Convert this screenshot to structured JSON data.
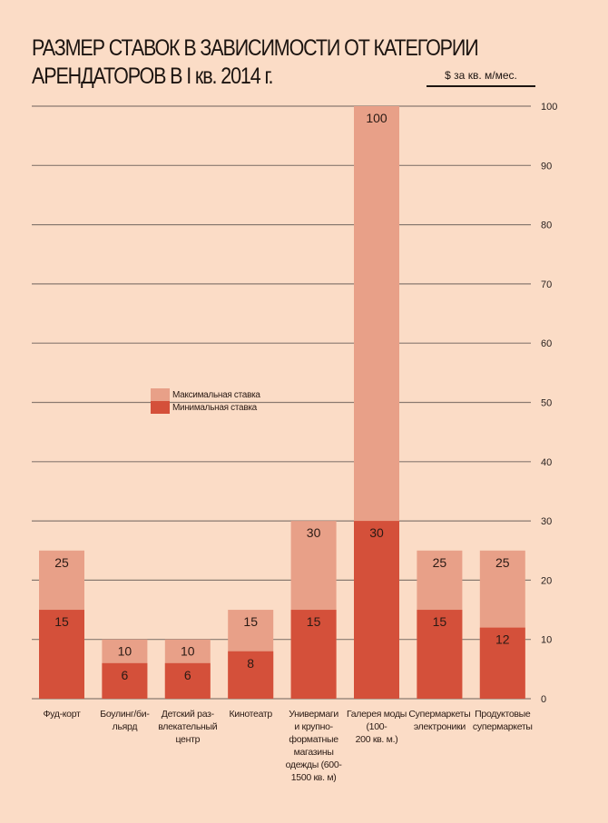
{
  "title_line1": "РАЗМЕР СТАВОК В ЗАВИСИМОСТИ ОТ КАТЕГОРИИ",
  "title_line2": "АРЕНДАТОРОВ В I кв. 2014 г.",
  "unit_label": "$ за кв. м/мес.",
  "colors": {
    "background": "#fbdcc6",
    "max_rate": "#e8a088",
    "min_rate": "#d4503a",
    "grid": "#8a7a70"
  },
  "chart_data": {
    "type": "bar",
    "stacked": "overlay",
    "title": "РАЗМЕР СТАВОК В ЗАВИСИМОСТИ ОТ КАТЕГОРИИ АРЕНДАТОРОВ В I кв. 2014 г.",
    "ylabel": "$ за кв. м/мес.",
    "xlabel": "",
    "ylim": [
      0,
      100
    ],
    "yticks": [
      0,
      10,
      20,
      30,
      40,
      50,
      60,
      70,
      80,
      90,
      100
    ],
    "y_axis_position": "right",
    "grid": true,
    "legend_position": "center-left",
    "categories": [
      [
        "Фуд-корт"
      ],
      [
        "Боулинг/би-",
        "льярд"
      ],
      [
        "Детский раз-",
        "влекательный",
        "центр"
      ],
      [
        "Кинотеатр"
      ],
      [
        "Универмаги",
        "и крупно-",
        "форматные",
        "магазины",
        "одежды (600-",
        "1500 кв. м)"
      ],
      [
        "Галерея моды",
        "(100-",
        "200 кв. м.)"
      ],
      [
        "Супермаркеты",
        "электроники"
      ],
      [
        "Продуктовые",
        "супермаркеты"
      ]
    ],
    "series": [
      {
        "name": "Максимальная ставка",
        "values": [
          25,
          10,
          10,
          15,
          30,
          100,
          25,
          25
        ]
      },
      {
        "name": "Минимальная ставка",
        "values": [
          15,
          6,
          6,
          8,
          15,
          30,
          15,
          12
        ]
      }
    ]
  }
}
